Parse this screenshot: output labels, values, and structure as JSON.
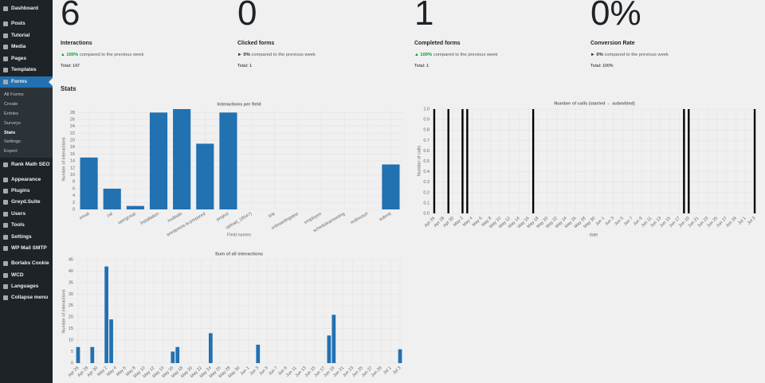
{
  "sidebar": {
    "menu": [
      "Dashboard",
      "Posts",
      "Tutorial",
      "Media",
      "Pages",
      "Templates",
      "Forms",
      "Rank Math SEO",
      "Appearance",
      "Plugins",
      "Greyd.Suite",
      "Users",
      "Tools",
      "Settings",
      "WP Mail SMTP",
      "Borlabs Cookie",
      "WCD",
      "Languages",
      "Collapse menu"
    ],
    "submenu": [
      "All Forms",
      "Create",
      "Entries",
      "Surveys",
      "Stats",
      "Settings",
      "Export"
    ]
  },
  "cards": [
    {
      "value": "6",
      "label": "Interactions",
      "change": "100%",
      "comparison": "compared to the previous week",
      "total": "Total: 147"
    },
    {
      "value": "0",
      "label": "Clicked forms",
      "change": "0%",
      "comparison": "compared to the previous week",
      "total": "Total: 1"
    },
    {
      "value": "1",
      "label": "Completed forms",
      "change": "100%",
      "comparison": "compared to the previous week",
      "total": "Total: 1"
    },
    {
      "value": "0%",
      "label": "Conversion Rate",
      "change": "0%",
      "comparison": "compared to the previous week",
      "total": "Total: 100%"
    }
  ],
  "stats_heading": "Stats",
  "chart_data": [
    {
      "type": "bar",
      "title": "Interactions per field",
      "y_label": "Number of interactions",
      "x_label": "Field names",
      "categories": [
        "email",
        "zal",
        "usergroup",
        "installation",
        "multisite",
        "wordpress-is-prepared",
        "project",
        "upload_18547)",
        "link",
        "onboardingstep",
        "employee",
        "scheduleameeting",
        "redirecturl",
        "submit"
      ],
      "values": [
        15,
        6,
        1,
        28,
        29,
        19,
        28,
        0,
        0,
        0,
        0,
        0,
        0,
        13
      ],
      "color": "#2271b1",
      "ylim": [
        0,
        29
      ],
      "yticks": [
        0,
        2,
        4,
        6,
        8,
        10,
        12,
        14,
        16,
        18,
        20,
        22,
        24,
        26,
        28
      ],
      "grid": true
    },
    {
      "type": "bar",
      "title": "Number of calls (started → submitted)",
      "y_label": "Number of calls",
      "x_label": "date",
      "categories": [
        "Apr 26",
        null,
        "Apr 28",
        null,
        "Apr 30",
        null,
        "May 2",
        null,
        "May 4",
        null,
        "May 6",
        null,
        "May 8",
        null,
        "May 10",
        null,
        "May 12",
        null,
        "May 14",
        null,
        "May 16",
        null,
        "May 18",
        null,
        "May 20",
        null,
        "May 22",
        null,
        "May 24",
        null,
        "May 26",
        null,
        "May 28",
        null,
        "May 30",
        null,
        "Jun 1",
        null,
        "Jun 3",
        null,
        "Jun 5",
        null,
        "Jun 7",
        null,
        "Jun 9",
        null,
        "Jun 11",
        null,
        "Jun 13",
        null,
        "Jun 15",
        null,
        "Jun 17",
        null,
        "Jun 19",
        null,
        "Jun 21",
        null,
        "Jun 23",
        null,
        "Jun 25",
        null,
        "Jun 27",
        null,
        "Jun 29",
        null,
        "Jul 1",
        null,
        "Jul 3"
      ],
      "values": [
        1,
        0,
        0,
        1,
        0,
        0,
        1,
        1,
        0,
        0,
        0,
        0,
        0,
        0,
        0,
        0,
        0,
        0,
        0,
        0,
        0,
        1,
        0,
        0,
        0,
        0,
        0,
        0,
        0,
        0,
        0,
        0,
        0,
        0,
        0,
        0,
        0,
        0,
        0,
        0,
        0,
        0,
        0,
        0,
        0,
        0,
        0,
        0,
        0,
        0,
        0,
        0,
        0,
        1,
        1,
        0,
        0,
        0,
        0,
        0,
        0,
        0,
        0,
        0,
        0,
        0,
        0,
        0,
        1
      ],
      "color": "#000000",
      "ylim": [
        0,
        1
      ],
      "yticks": [
        {
          "value": 0,
          "label": "0.0"
        },
        0.1,
        0.2,
        0.3,
        0.4,
        0.5,
        0.6,
        0.7,
        0.8,
        0.9,
        {
          "value": 1,
          "label": "1.0"
        }
      ],
      "grid": true
    },
    {
      "type": "bar",
      "title": "Sum of all interactions",
      "y_label": "Number of interactions",
      "categories": [
        "Apr 26",
        null,
        "Apr 28",
        null,
        "Apr 30",
        null,
        "May 2",
        null,
        "May 4",
        null,
        "May 6",
        null,
        "May 8",
        null,
        "May 10",
        null,
        "May 12",
        null,
        "May 14",
        null,
        "May 16",
        null,
        "May 18",
        null,
        "May 20",
        null,
        "May 22",
        null,
        "May 24",
        null,
        "May 26",
        null,
        "May 28",
        null,
        "May 30",
        null,
        "Jun 1",
        null,
        "Jun 3",
        null,
        "Jun 5",
        null,
        "Jun 7",
        null,
        "Jun 9",
        null,
        "Jun 11",
        null,
        "Jun 13",
        null,
        "Jun 15",
        null,
        "Jun 17",
        null,
        "Jun 19",
        null,
        "Jun 21",
        null,
        "Jun 23",
        null,
        "Jun 25",
        null,
        "Jun 27",
        null,
        "Jun 29",
        null,
        "Jul 1",
        null,
        "Jul 3"
      ],
      "values": [
        7,
        0,
        0,
        7,
        0,
        0,
        42,
        19,
        0,
        0,
        0,
        0,
        0,
        0,
        0,
        0,
        0,
        0,
        0,
        0,
        5,
        7,
        0,
        0,
        0,
        0,
        0,
        0,
        13,
        0,
        0,
        0,
        0,
        0,
        0,
        0,
        0,
        0,
        8,
        0,
        0,
        0,
        0,
        0,
        0,
        0,
        0,
        0,
        0,
        0,
        0,
        0,
        0,
        12,
        21,
        0,
        0,
        0,
        0,
        0,
        0,
        0,
        0,
        0,
        0,
        0,
        0,
        0,
        6
      ],
      "color": "#2271b1",
      "ylim": [
        0,
        45
      ],
      "yticks": [
        0,
        5,
        10,
        15,
        20,
        25,
        30,
        35,
        40,
        45
      ],
      "grid": true
    }
  ]
}
